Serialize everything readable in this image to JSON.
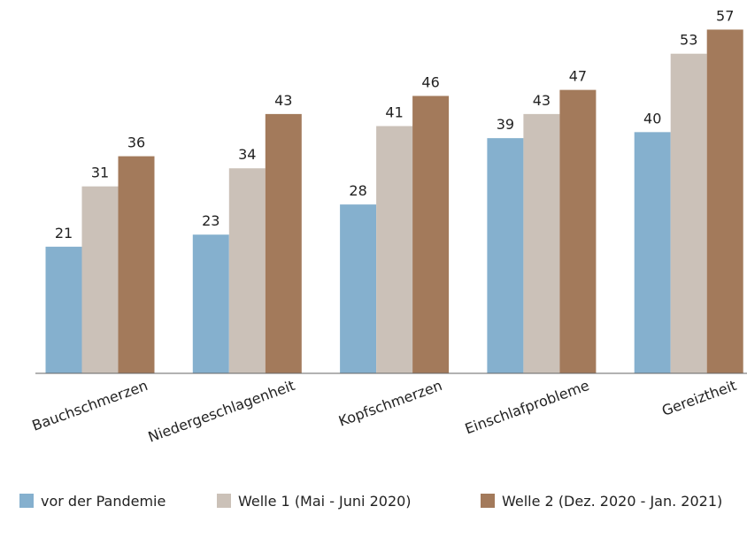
{
  "chart_data": {
    "type": "bar",
    "categories": [
      "Bauchschmerzen",
      "Niedergeschlagenheit",
      "Kopfschmerzen",
      "Einschlafprobleme",
      "Gereiztheit"
    ],
    "series": [
      {
        "name": "vor der Pandemie",
        "color": "#85b0ce",
        "values": [
          21,
          23,
          28,
          39,
          40
        ]
      },
      {
        "name": "Welle 1 (Mai - Juni 2020)",
        "color": "#cbc1b8",
        "values": [
          31,
          34,
          41,
          43,
          53
        ]
      },
      {
        "name": "Welle 2 (Dez. 2020 - Jan. 2021)",
        "color": "#a37a5b",
        "values": [
          36,
          43,
          46,
          47,
          57
        ]
      }
    ],
    "ylim": [
      0,
      60
    ]
  }
}
